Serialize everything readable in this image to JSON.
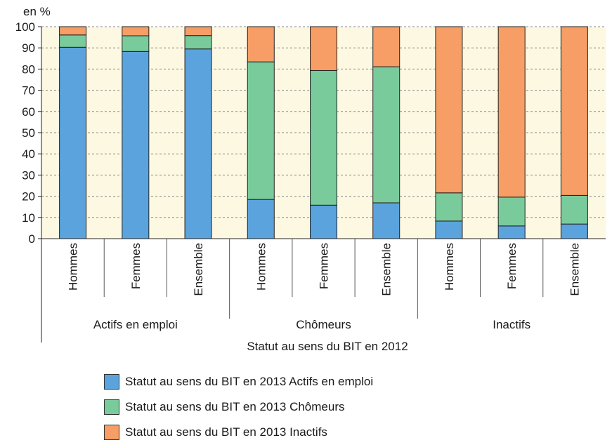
{
  "chart_data": {
    "type": "bar",
    "stacked": true,
    "yunit_label": "en %",
    "ylim": [
      0,
      100
    ],
    "yticks": [
      0,
      10,
      20,
      30,
      40,
      50,
      60,
      70,
      80,
      90,
      100
    ],
    "grid": "horizontal-dashed",
    "categories": [
      "Hommes",
      "Femmes",
      "Ensemble",
      "Hommes",
      "Femmes",
      "Ensemble",
      "Hommes",
      "Femmes",
      "Ensemble"
    ],
    "groups": [
      {
        "label": "Actifs en emploi",
        "count": 3
      },
      {
        "label": "Chômeurs",
        "count": 3
      },
      {
        "label": "Inactifs",
        "count": 3
      }
    ],
    "xlabel": "Statut au sens du BIT en 2012",
    "series": [
      {
        "name": "Statut au sens du BIT en 2013 Actifs en emploi",
        "color": "#5ba3dc",
        "values": [
          90.3,
          88.3,
          89.5,
          18.5,
          15.8,
          16.9,
          8.3,
          6.0,
          6.9
        ]
      },
      {
        "name": "Statut au sens du BIT en 2013 Chômeurs",
        "color": "#7acb9c",
        "values": [
          5.8,
          7.4,
          6.3,
          64.9,
          63.5,
          64.2,
          13.3,
          13.6,
          13.5
        ]
      },
      {
        "name": "Statut au sens du BIT en 2013 Inactifs",
        "color": "#f79d66",
        "values": [
          3.9,
          4.3,
          4.2,
          16.6,
          20.7,
          18.9,
          78.4,
          80.4,
          79.6
        ]
      }
    ],
    "legend_position": "bottom-left"
  },
  "plot_background": "#fdf8e1"
}
